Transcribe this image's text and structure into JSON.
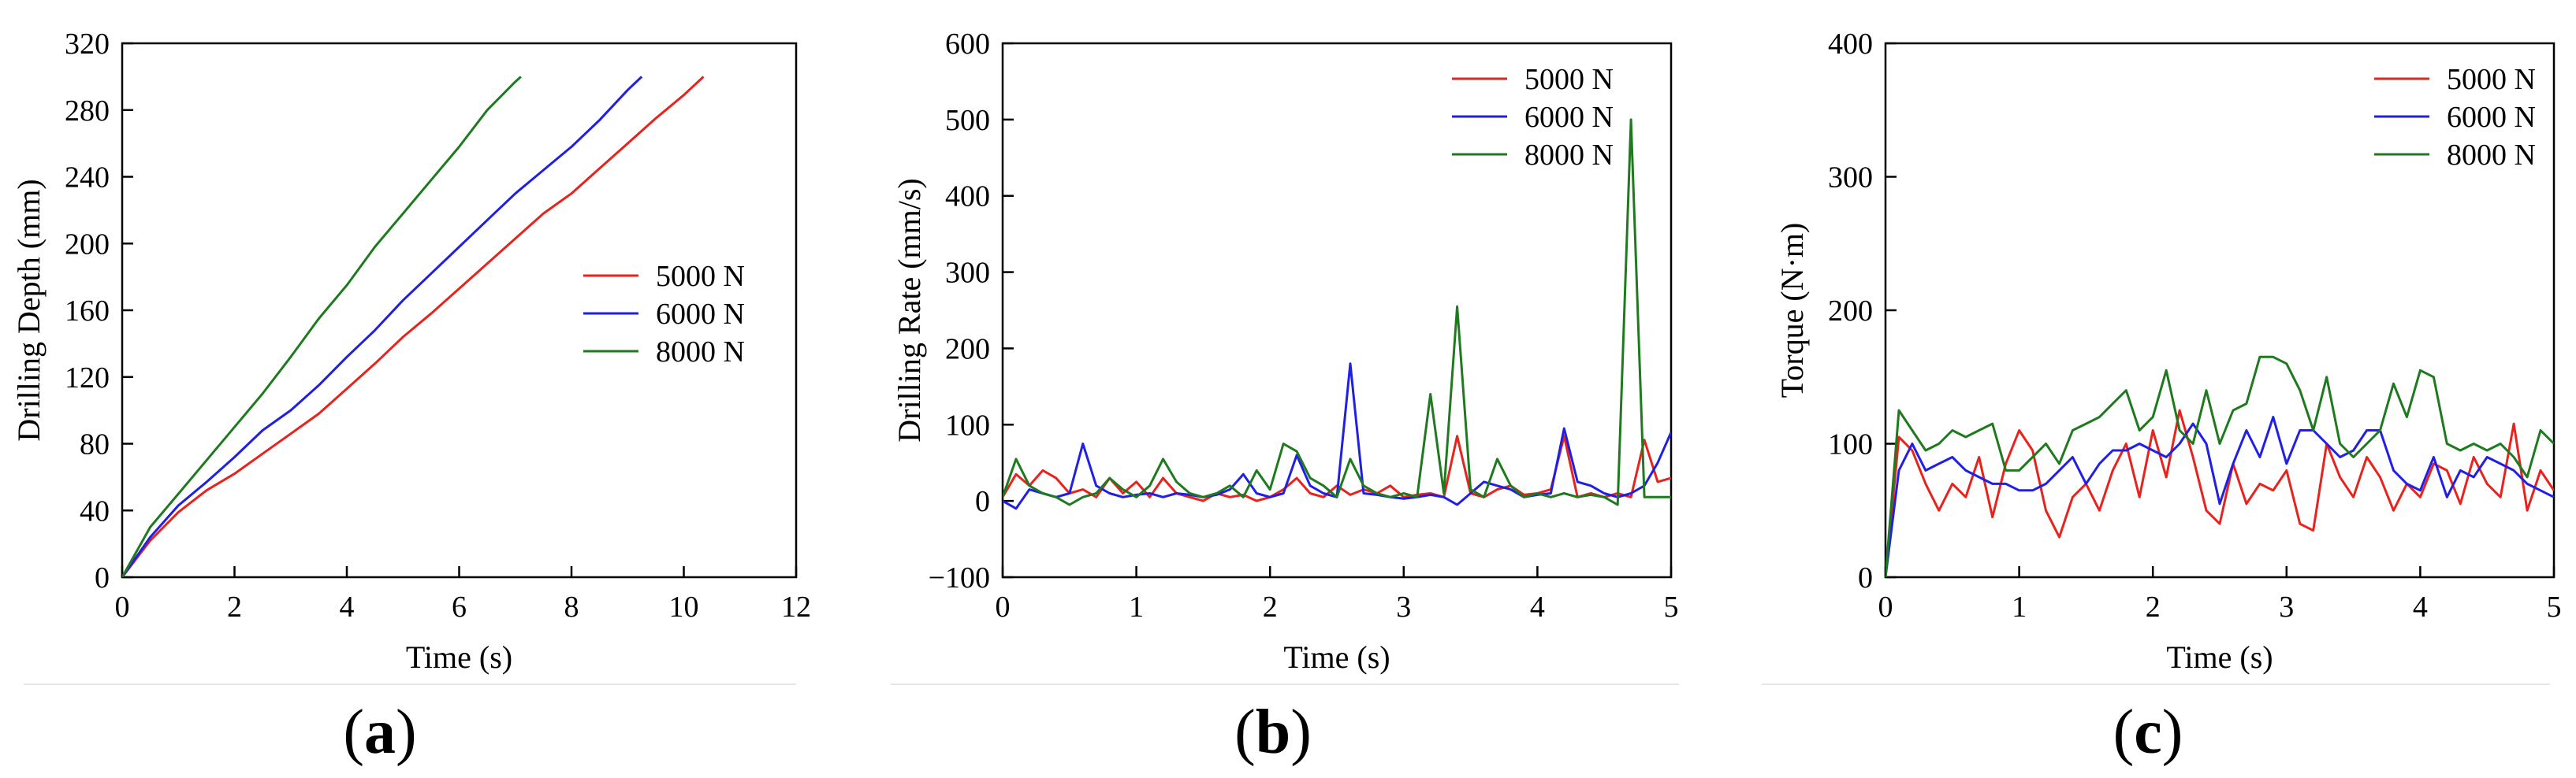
{
  "chart_data": [
    {
      "type": "line",
      "panel": "a",
      "title": "",
      "xlabel": "Time (s)",
      "ylabel": "Drilling Depth (mm)",
      "xlim": [
        0,
        12
      ],
      "ylim": [
        0,
        320
      ],
      "xticks": [
        "0",
        "2",
        "4",
        "6",
        "8",
        "10",
        "12"
      ],
      "yticks": [
        "0",
        "40",
        "80",
        "120",
        "160",
        "200",
        "240",
        "280",
        "320"
      ],
      "legend_position": "center-right",
      "series": [
        {
          "name": "5000 N",
          "color": "#e8221c",
          "x": [
            0,
            0.5,
            1,
            1.5,
            2,
            2.5,
            3,
            3.5,
            4,
            4.5,
            5,
            5.5,
            6,
            6.5,
            7,
            7.5,
            8,
            8.5,
            9,
            9.5,
            10,
            10.35
          ],
          "y": [
            0,
            22,
            39,
            52,
            62,
            74,
            86,
            98,
            113,
            128,
            144,
            158,
            173,
            188,
            203,
            218,
            230,
            245,
            260,
            275,
            289,
            300
          ]
        },
        {
          "name": "6000 N",
          "color": "#1f1fe8",
          "x": [
            0,
            0.5,
            1,
            1.5,
            2,
            2.5,
            3,
            3.5,
            4,
            4.5,
            5,
            5.5,
            6,
            6.5,
            7,
            7.5,
            8,
            8.5,
            9,
            9.25
          ],
          "y": [
            0,
            24,
            43,
            57,
            72,
            88,
            100,
            115,
            132,
            148,
            166,
            182,
            198,
            214,
            230,
            244,
            258,
            274,
            292,
            300
          ]
        },
        {
          "name": "8000 N",
          "color": "#1f7a1f",
          "x": [
            0,
            0.5,
            1,
            1.5,
            2,
            2.5,
            3,
            3.5,
            4,
            4.5,
            5,
            5.5,
            6,
            6.5,
            7,
            7.1
          ],
          "y": [
            0,
            30,
            50,
            70,
            90,
            110,
            132,
            155,
            175,
            198,
            218,
            238,
            258,
            280,
            297,
            300
          ]
        }
      ]
    },
    {
      "type": "line",
      "panel": "b",
      "title": "",
      "xlabel": "Time (s)",
      "ylabel": "Drilling Rate (mm/s)",
      "xlim": [
        0,
        5
      ],
      "ylim": [
        -100,
        600
      ],
      "xticks": [
        "0",
        "1",
        "2",
        "3",
        "4",
        "5"
      ],
      "yticks": [
        "−100",
        "0",
        "100",
        "200",
        "300",
        "400",
        "500",
        "600"
      ],
      "legend_position": "top-right",
      "series": [
        {
          "name": "5000 N",
          "color": "#e8221c",
          "x": [
            0,
            0.1,
            0.2,
            0.3,
            0.4,
            0.5,
            0.6,
            0.7,
            0.8,
            0.9,
            1.0,
            1.1,
            1.2,
            1.3,
            1.4,
            1.5,
            1.6,
            1.7,
            1.8,
            1.9,
            2.0,
            2.1,
            2.2,
            2.3,
            2.4,
            2.5,
            2.6,
            2.7,
            2.8,
            2.9,
            3.0,
            3.1,
            3.2,
            3.3,
            3.4,
            3.5,
            3.6,
            3.7,
            3.8,
            3.9,
            4.0,
            4.1,
            4.2,
            4.3,
            4.4,
            4.5,
            4.6,
            4.7,
            4.8,
            4.9,
            5.0
          ],
          "y": [
            5,
            35,
            20,
            40,
            30,
            10,
            15,
            5,
            30,
            10,
            25,
            5,
            30,
            10,
            5,
            0,
            10,
            5,
            8,
            0,
            5,
            15,
            30,
            10,
            5,
            20,
            8,
            15,
            10,
            20,
            5,
            8,
            10,
            5,
            85,
            10,
            5,
            15,
            20,
            8,
            10,
            15,
            85,
            5,
            10,
            5,
            10,
            5,
            80,
            25,
            30
          ]
        },
        {
          "name": "6000 N",
          "color": "#1f1fe8",
          "x": [
            0,
            0.1,
            0.2,
            0.3,
            0.4,
            0.5,
            0.6,
            0.7,
            0.8,
            0.9,
            1.0,
            1.1,
            1.2,
            1.3,
            1.4,
            1.5,
            1.6,
            1.7,
            1.8,
            1.9,
            2.0,
            2.1,
            2.2,
            2.3,
            2.4,
            2.5,
            2.6,
            2.7,
            2.8,
            2.9,
            3.0,
            3.1,
            3.2,
            3.3,
            3.4,
            3.5,
            3.6,
            3.7,
            3.8,
            3.9,
            4.0,
            4.1,
            4.2,
            4.3,
            4.4,
            4.5,
            4.6,
            4.7,
            4.8,
            4.9,
            5.0
          ],
          "y": [
            0,
            -10,
            15,
            10,
            5,
            10,
            75,
            20,
            10,
            5,
            8,
            10,
            5,
            10,
            8,
            5,
            8,
            15,
            35,
            10,
            5,
            10,
            60,
            20,
            10,
            5,
            180,
            10,
            8,
            5,
            3,
            5,
            8,
            5,
            -5,
            10,
            25,
            20,
            15,
            5,
            8,
            10,
            95,
            25,
            20,
            10,
            5,
            10,
            20,
            50,
            90
          ]
        },
        {
          "name": "8000 N",
          "color": "#1f7a1f",
          "x": [
            0,
            0.1,
            0.2,
            0.3,
            0.4,
            0.5,
            0.6,
            0.7,
            0.8,
            0.9,
            1.0,
            1.1,
            1.2,
            1.3,
            1.4,
            1.5,
            1.6,
            1.7,
            1.8,
            1.9,
            2.0,
            2.1,
            2.2,
            2.3,
            2.4,
            2.5,
            2.6,
            2.7,
            2.8,
            2.9,
            3.0,
            3.1,
            3.2,
            3.3,
            3.4,
            3.5,
            3.6,
            3.7,
            3.8,
            3.9,
            4.0,
            4.1,
            4.2,
            4.3,
            4.4,
            4.5,
            4.6,
            4.7,
            4.8,
            4.9,
            5.0
          ],
          "y": [
            5,
            55,
            20,
            10,
            5,
            -5,
            5,
            10,
            30,
            15,
            5,
            20,
            55,
            25,
            10,
            5,
            10,
            20,
            5,
            40,
            15,
            75,
            65,
            30,
            20,
            5,
            55,
            20,
            10,
            5,
            10,
            5,
            140,
            10,
            255,
            15,
            5,
            55,
            20,
            5,
            10,
            5,
            10,
            5,
            8,
            5,
            -5,
            500,
            5,
            5,
            5
          ]
        }
      ]
    },
    {
      "type": "line",
      "panel": "c",
      "title": "",
      "xlabel": "Time (s)",
      "ylabel": "Torque (N·m)",
      "xlim": [
        0,
        5
      ],
      "ylim": [
        0,
        400
      ],
      "xticks": [
        "0",
        "1",
        "2",
        "3",
        "4",
        "5"
      ],
      "yticks": [
        "0",
        "100",
        "200",
        "300",
        "400"
      ],
      "legend_position": "top-right",
      "series": [
        {
          "name": "5000 N",
          "color": "#e8221c",
          "x": [
            0,
            0.1,
            0.2,
            0.3,
            0.4,
            0.5,
            0.6,
            0.7,
            0.8,
            0.9,
            1.0,
            1.1,
            1.2,
            1.3,
            1.4,
            1.5,
            1.6,
            1.7,
            1.8,
            1.9,
            2.0,
            2.1,
            2.2,
            2.3,
            2.4,
            2.5,
            2.6,
            2.7,
            2.8,
            2.9,
            3.0,
            3.1,
            3.2,
            3.3,
            3.4,
            3.5,
            3.6,
            3.7,
            3.8,
            3.9,
            4.0,
            4.1,
            4.2,
            4.3,
            4.4,
            4.5,
            4.6,
            4.7,
            4.8,
            4.9,
            5.0
          ],
          "y": [
            0,
            105,
            95,
            70,
            50,
            70,
            60,
            90,
            45,
            85,
            110,
            95,
            50,
            30,
            60,
            70,
            50,
            80,
            100,
            60,
            110,
            75,
            125,
            90,
            50,
            40,
            85,
            55,
            70,
            65,
            80,
            40,
            35,
            100,
            75,
            60,
            90,
            75,
            50,
            70,
            60,
            85,
            80,
            55,
            90,
            70,
            60,
            115,
            50,
            80,
            65
          ]
        },
        {
          "name": "6000 N",
          "color": "#1f1fe8",
          "x": [
            0,
            0.1,
            0.2,
            0.3,
            0.4,
            0.5,
            0.6,
            0.7,
            0.8,
            0.9,
            1.0,
            1.1,
            1.2,
            1.3,
            1.4,
            1.5,
            1.6,
            1.7,
            1.8,
            1.9,
            2.0,
            2.1,
            2.2,
            2.3,
            2.4,
            2.5,
            2.6,
            2.7,
            2.8,
            2.9,
            3.0,
            3.1,
            3.2,
            3.3,
            3.4,
            3.5,
            3.6,
            3.7,
            3.8,
            3.9,
            4.0,
            4.1,
            4.2,
            4.3,
            4.4,
            4.5,
            4.6,
            4.7,
            4.8,
            4.9,
            5.0
          ],
          "y": [
            0,
            80,
            100,
            80,
            85,
            90,
            80,
            75,
            70,
            70,
            65,
            65,
            70,
            80,
            90,
            70,
            85,
            95,
            95,
            100,
            95,
            90,
            100,
            115,
            100,
            55,
            85,
            110,
            90,
            120,
            85,
            110,
            110,
            100,
            90,
            95,
            110,
            110,
            80,
            70,
            65,
            90,
            60,
            80,
            75,
            90,
            85,
            80,
            70,
            65,
            60
          ]
        },
        {
          "name": "8000 N",
          "color": "#1f7a1f",
          "x": [
            0,
            0.1,
            0.2,
            0.3,
            0.4,
            0.5,
            0.6,
            0.7,
            0.8,
            0.9,
            1.0,
            1.1,
            1.2,
            1.3,
            1.4,
            1.5,
            1.6,
            1.7,
            1.8,
            1.9,
            2.0,
            2.1,
            2.2,
            2.3,
            2.4,
            2.5,
            2.6,
            2.7,
            2.8,
            2.9,
            3.0,
            3.1,
            3.2,
            3.3,
            3.4,
            3.5,
            3.6,
            3.7,
            3.8,
            3.9,
            4.0,
            4.1,
            4.2,
            4.3,
            4.4,
            4.5,
            4.6,
            4.7,
            4.8,
            4.9,
            5.0
          ],
          "y": [
            0,
            125,
            110,
            95,
            100,
            110,
            105,
            110,
            115,
            80,
            80,
            90,
            100,
            85,
            110,
            115,
            120,
            130,
            140,
            110,
            120,
            155,
            110,
            100,
            140,
            100,
            125,
            130,
            165,
            165,
            160,
            140,
            110,
            150,
            100,
            90,
            100,
            110,
            145,
            120,
            155,
            150,
            100,
            95,
            100,
            95,
            100,
            90,
            75,
            110,
            100
          ]
        }
      ]
    }
  ],
  "panel_labels": [
    "a",
    "b",
    "c"
  ]
}
